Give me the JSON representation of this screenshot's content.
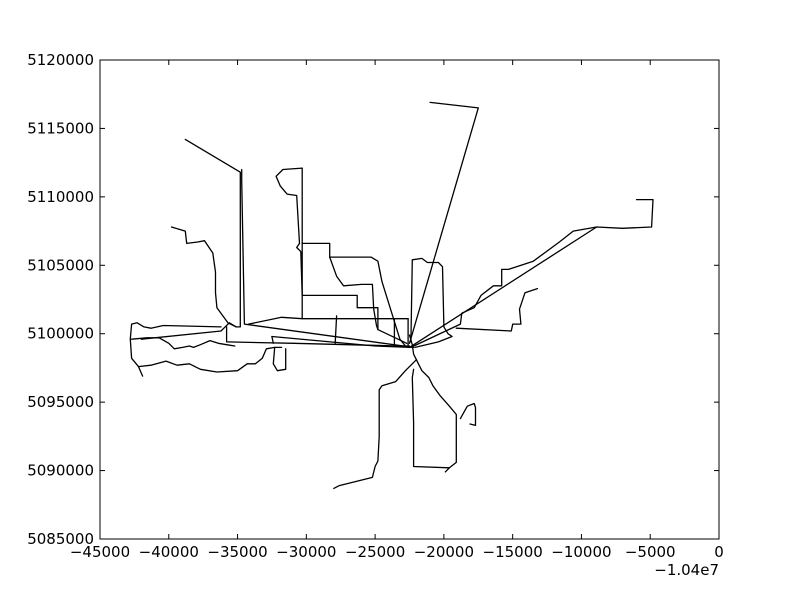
{
  "chart_data": {
    "type": "line",
    "title": "",
    "xlabel": "",
    "ylabel": "",
    "x_offset_label": "−1.04e7",
    "xlim": [
      -45000,
      0
    ],
    "ylim": [
      5085000,
      5120000
    ],
    "grid": false,
    "legend": "none",
    "line_color": "#000000",
    "x_ticks": [
      -45000,
      -40000,
      -35000,
      -30000,
      -25000,
      -20000,
      -15000,
      -10000,
      -5000,
      0
    ],
    "x_tick_labels": [
      "−45000",
      "−40000",
      "−35000",
      "−30000",
      "−25000",
      "−20000",
      "−15000",
      "−10000",
      "−5000",
      "0"
    ],
    "y_ticks": [
      5085000,
      5090000,
      5095000,
      5100000,
      5105000,
      5110000,
      5115000,
      5120000
    ],
    "y_tick_labels": [
      "5085000",
      "5090000",
      "5095000",
      "5100000",
      "5105000",
      "5110000",
      "5115000",
      "5120000"
    ],
    "series": [
      {
        "points": [
          [
            -21000,
            5116900
          ],
          [
            -17500,
            5116500
          ],
          [
            -22500,
            5099300
          ]
        ]
      },
      {
        "points": [
          [
            -38800,
            5114200
          ],
          [
            -34800,
            5111800
          ],
          [
            -34800,
            5100500
          ],
          [
            -35100,
            5100500
          ],
          [
            -35600,
            5100800
          ],
          [
            -36200,
            5100200
          ],
          [
            -42000,
            5099600
          ]
        ]
      },
      {
        "points": [
          [
            -34700,
            5112000
          ],
          [
            -34700,
            5111200
          ],
          [
            -34500,
            5100700
          ],
          [
            -22200,
            5099000
          ]
        ]
      },
      {
        "points": [
          [
            -30300,
            5112100
          ],
          [
            -31700,
            5112000
          ],
          [
            -32200,
            5111500
          ],
          [
            -31900,
            5110800
          ],
          [
            -31400,
            5110200
          ],
          [
            -30700,
            5110100
          ],
          [
            -30500,
            5106600
          ],
          [
            -30700,
            5106300
          ],
          [
            -30400,
            5106000
          ],
          [
            -30300,
            5102800
          ],
          [
            -30300,
            5101100
          ],
          [
            -31800,
            5101200
          ],
          [
            -34200,
            5100700
          ]
        ]
      },
      {
        "points": [
          [
            -30300,
            5112100
          ],
          [
            -30300,
            5102800
          ],
          [
            -26300,
            5102800
          ],
          [
            -26300,
            5101900
          ],
          [
            -24800,
            5101900
          ],
          [
            -24800,
            5100300
          ]
        ]
      },
      {
        "points": [
          [
            -30300,
            5106600
          ],
          [
            -28300,
            5106600
          ],
          [
            -28300,
            5105600
          ],
          [
            -25300,
            5105600
          ],
          [
            -24800,
            5105300
          ],
          [
            -24500,
            5103800
          ],
          [
            -23200,
            5099600
          ],
          [
            -22800,
            5099100
          ]
        ]
      },
      {
        "points": [
          [
            -28300,
            5105600
          ],
          [
            -27800,
            5104200
          ],
          [
            -27300,
            5103500
          ],
          [
            -26000,
            5103600
          ],
          [
            -25200,
            5103600
          ],
          [
            -25100,
            5101800
          ],
          [
            -24900,
            5100600
          ],
          [
            -24800,
            5100300
          ],
          [
            -22700,
            5099300
          ]
        ]
      },
      {
        "points": [
          [
            -39800,
            5107800
          ],
          [
            -38800,
            5107500
          ],
          [
            -38700,
            5106600
          ],
          [
            -37900,
            5106700
          ],
          [
            -37400,
            5106800
          ],
          [
            -36800,
            5105900
          ],
          [
            -36600,
            5104500
          ],
          [
            -36600,
            5103000
          ],
          [
            -36500,
            5101900
          ],
          [
            -35700,
            5100800
          ],
          [
            -35100,
            5100500
          ]
        ]
      },
      {
        "points": [
          [
            -22400,
            5099400
          ],
          [
            -22300,
            5105400
          ],
          [
            -21600,
            5105500
          ],
          [
            -21200,
            5105200
          ],
          [
            -20400,
            5105200
          ],
          [
            -20100,
            5104900
          ],
          [
            -20000,
            5100500
          ],
          [
            -19700,
            5100000
          ],
          [
            -19400,
            5099800
          ],
          [
            -20400,
            5099400
          ],
          [
            -22100,
            5099000
          ]
        ]
      },
      {
        "points": [
          [
            -6000,
            5109800
          ],
          [
            -4800,
            5109800
          ],
          [
            -4900,
            5107800
          ],
          [
            -7000,
            5107700
          ],
          [
            -8900,
            5107800
          ],
          [
            -10600,
            5107500
          ],
          [
            -11600,
            5106700
          ],
          [
            -13500,
            5105300
          ],
          [
            -15300,
            5104700
          ],
          [
            -15800,
            5104700
          ],
          [
            -15800,
            5103500
          ],
          [
            -16400,
            5103500
          ],
          [
            -17300,
            5102800
          ],
          [
            -17800,
            5101900
          ],
          [
            -18700,
            5101500
          ],
          [
            -18800,
            5100700
          ],
          [
            -22400,
            5099000
          ]
        ]
      },
      {
        "points": [
          [
            -8900,
            5107800
          ],
          [
            -22500,
            5099000
          ]
        ]
      },
      {
        "points": [
          [
            -13200,
            5103300
          ],
          [
            -14100,
            5103000
          ],
          [
            -14500,
            5101800
          ],
          [
            -14400,
            5100700
          ],
          [
            -15000,
            5100700
          ],
          [
            -15100,
            5100200
          ],
          [
            -19100,
            5100400
          ]
        ]
      },
      {
        "points": [
          [
            -42700,
            5100700
          ],
          [
            -42800,
            5099600
          ],
          [
            -42700,
            5098200
          ],
          [
            -42200,
            5097600
          ],
          [
            -41900,
            5096900
          ]
        ]
      },
      {
        "points": [
          [
            -42700,
            5100700
          ],
          [
            -42300,
            5100800
          ],
          [
            -41800,
            5100500
          ],
          [
            -41300,
            5100400
          ],
          [
            -40400,
            5100600
          ],
          [
            -36200,
            5100500
          ]
        ]
      },
      {
        "points": [
          [
            -42700,
            5099600
          ],
          [
            -41600,
            5099700
          ],
          [
            -40700,
            5099700
          ],
          [
            -40000,
            5099300
          ],
          [
            -39600,
            5098900
          ],
          [
            -39000,
            5099000
          ],
          [
            -38500,
            5099100
          ],
          [
            -38200,
            5099000
          ],
          [
            -37700,
            5099200
          ],
          [
            -37000,
            5099500
          ],
          [
            -36400,
            5099300
          ],
          [
            -35800,
            5099200
          ],
          [
            -35200,
            5099100
          ]
        ]
      },
      {
        "points": [
          [
            -42200,
            5097600
          ],
          [
            -41300,
            5097700
          ],
          [
            -40200,
            5098000
          ],
          [
            -39400,
            5097700
          ],
          [
            -38500,
            5097800
          ],
          [
            -37700,
            5097400
          ],
          [
            -36500,
            5097200
          ],
          [
            -35000,
            5097300
          ],
          [
            -34300,
            5097800
          ],
          [
            -33700,
            5097800
          ],
          [
            -33200,
            5098200
          ],
          [
            -32900,
            5098900
          ],
          [
            -32300,
            5099000
          ],
          [
            -31800,
            5099000
          ]
        ]
      },
      {
        "points": [
          [
            -32300,
            5099000
          ],
          [
            -32400,
            5097800
          ],
          [
            -32100,
            5097300
          ],
          [
            -31500,
            5097400
          ],
          [
            -31500,
            5098900
          ]
        ]
      },
      {
        "points": [
          [
            -35800,
            5099400
          ],
          [
            -35800,
            5100500
          ]
        ]
      },
      {
        "points": [
          [
            -35800,
            5099400
          ],
          [
            -30900,
            5099300
          ],
          [
            -23200,
            5099100
          ],
          [
            -22500,
            5099100
          ]
        ]
      },
      {
        "points": [
          [
            -32500,
            5099800
          ],
          [
            -25000,
            5099100
          ],
          [
            -22500,
            5099000
          ]
        ]
      },
      {
        "points": [
          [
            -32500,
            5099800
          ],
          [
            -32400,
            5099300
          ]
        ]
      },
      {
        "points": [
          [
            -27800,
            5101300
          ],
          [
            -27900,
            5099300
          ]
        ]
      },
      {
        "points": [
          [
            -23600,
            5101100
          ],
          [
            -23600,
            5099100
          ]
        ]
      },
      {
        "points": [
          [
            -22600,
            5101100
          ],
          [
            -22600,
            5099100
          ]
        ]
      },
      {
        "points": [
          [
            -30300,
            5101100
          ],
          [
            -22600,
            5101100
          ]
        ]
      },
      {
        "points": [
          [
            -22500,
            5099900
          ],
          [
            -22300,
            5099200
          ],
          [
            -22200,
            5098500
          ],
          [
            -22000,
            5098100
          ]
        ]
      },
      {
        "points": [
          [
            -22000,
            5098100
          ],
          [
            -21800,
            5097700
          ],
          [
            -21600,
            5097300
          ],
          [
            -21100,
            5096800
          ],
          [
            -20800,
            5096200
          ],
          [
            -20300,
            5095500
          ],
          [
            -19600,
            5094700
          ],
          [
            -19100,
            5094100
          ],
          [
            -19100,
            5091500
          ],
          [
            -19100,
            5090600
          ],
          [
            -19600,
            5090200
          ],
          [
            -19900,
            5089900
          ]
        ]
      },
      {
        "points": [
          [
            -22000,
            5098100
          ],
          [
            -22300,
            5097800
          ],
          [
            -22800,
            5097300
          ],
          [
            -23500,
            5096500
          ],
          [
            -24500,
            5096200
          ],
          [
            -24700,
            5095900
          ],
          [
            -24700,
            5092500
          ],
          [
            -24800,
            5090700
          ],
          [
            -25000,
            5090300
          ],
          [
            -25200,
            5089500
          ],
          [
            -27600,
            5088900
          ],
          [
            -28000,
            5088700
          ]
        ]
      },
      {
        "points": [
          [
            -22200,
            5097400
          ],
          [
            -22300,
            5096800
          ],
          [
            -22200,
            5093500
          ],
          [
            -22200,
            5090300
          ],
          [
            -19600,
            5090200
          ]
        ]
      },
      {
        "points": [
          [
            -18800,
            5093800
          ],
          [
            -18300,
            5094700
          ],
          [
            -17800,
            5094900
          ],
          [
            -17700,
            5094600
          ],
          [
            -17700,
            5093300
          ],
          [
            -18100,
            5093400
          ]
        ]
      }
    ]
  }
}
